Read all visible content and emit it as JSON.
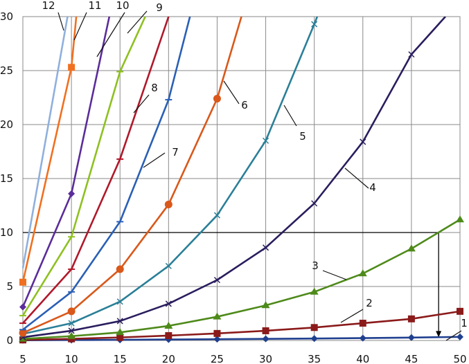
{
  "chart_data": {
    "type": "line",
    "title": "",
    "xlabel": "",
    "ylabel": "",
    "xlim": [
      5,
      50
    ],
    "ylim": [
      0,
      30
    ],
    "x_ticks": [
      5,
      10,
      15,
      20,
      25,
      30,
      35,
      40,
      45,
      50
    ],
    "y_ticks": [
      0,
      5,
      10,
      15,
      20,
      25,
      30
    ],
    "x_tick_labels": [
      "5",
      "10",
      "15",
      "20",
      "25",
      "30",
      "35",
      "40",
      "45",
      "50"
    ],
    "y_tick_labels": [
      "0",
      "5",
      "10",
      "15",
      "20",
      "25",
      "30"
    ],
    "grid": true,
    "reference_line": {
      "y": 10,
      "x_from": 5,
      "x_to": 47.8,
      "drop_to_y": 0.3
    },
    "series": [
      {
        "name": "1",
        "color": "#1f3f8f",
        "marker": "diamond",
        "x": [
          5,
          10,
          15,
          20,
          25,
          30,
          35,
          40,
          45,
          50
        ],
        "y": [
          0.02,
          0.04,
          0.06,
          0.09,
          0.12,
          0.15,
          0.18,
          0.22,
          0.27,
          0.33
        ]
      },
      {
        "name": "2",
        "color": "#8b1a1a",
        "marker": "square",
        "x": [
          5,
          10,
          15,
          20,
          25,
          30,
          35,
          40,
          45,
          50
        ],
        "y": [
          0.05,
          0.15,
          0.28,
          0.45,
          0.65,
          0.9,
          1.2,
          1.6,
          2.0,
          2.7
        ]
      },
      {
        "name": "3",
        "color": "#4e8a1a",
        "marker": "triangle",
        "x": [
          5,
          10,
          15,
          20,
          25,
          30,
          35,
          40,
          45,
          50
        ],
        "y": [
          0.15,
          0.4,
          0.75,
          1.35,
          2.2,
          3.25,
          4.5,
          6.2,
          8.5,
          11.2
        ]
      },
      {
        "name": "4",
        "color": "#2a1d5e",
        "marker": "cross",
        "x": [
          5,
          10,
          15,
          20,
          25,
          30,
          35,
          40,
          45,
          48.5
        ],
        "y": [
          0.3,
          0.9,
          1.8,
          3.4,
          5.6,
          8.6,
          12.7,
          18.4,
          26.5,
          30
        ]
      },
      {
        "name": "5",
        "color": "#2a7f98",
        "marker": "cross",
        "x": [
          5,
          10,
          15,
          20,
          25,
          30,
          35,
          35.3
        ],
        "y": [
          0.6,
          1.6,
          3.6,
          6.9,
          11.6,
          18.5,
          29.3,
          30
        ]
      },
      {
        "name": "6",
        "color": "#d9581a",
        "marker": "circle",
        "x": [
          5,
          10,
          15,
          20,
          25,
          27.5
        ],
        "y": [
          0.7,
          2.7,
          6.6,
          12.6,
          22.4,
          30
        ]
      },
      {
        "name": "7",
        "color": "#2a5fb5",
        "marker": "dash",
        "x": [
          5,
          10,
          15,
          20,
          22.2
        ],
        "y": [
          1.0,
          4.5,
          11.0,
          22.3,
          30
        ]
      },
      {
        "name": "8",
        "color": "#b0182a",
        "marker": "dash",
        "x": [
          5,
          10,
          15,
          20
        ],
        "y": [
          1.6,
          6.6,
          16.8,
          30
        ]
      },
      {
        "name": "9",
        "color": "#8ec020",
        "marker": "dash",
        "x": [
          5,
          10,
          15,
          17.6
        ],
        "y": [
          2.3,
          9.6,
          24.9,
          30
        ]
      },
      {
        "name": "10",
        "color": "#5b2c9a",
        "marker": "diamond",
        "x": [
          5,
          10,
          13.9
        ],
        "y": [
          3.1,
          13.6,
          30
        ]
      },
      {
        "name": "11",
        "color": "#f07020",
        "marker": "square",
        "x": [
          5,
          10,
          10.5
        ],
        "y": [
          5.4,
          25.3,
          30
        ]
      },
      {
        "name": "12",
        "color": "#8fb0dd",
        "marker": "none",
        "x": [
          5,
          9.6
        ],
        "y": [
          6.7,
          30
        ]
      }
    ]
  }
}
